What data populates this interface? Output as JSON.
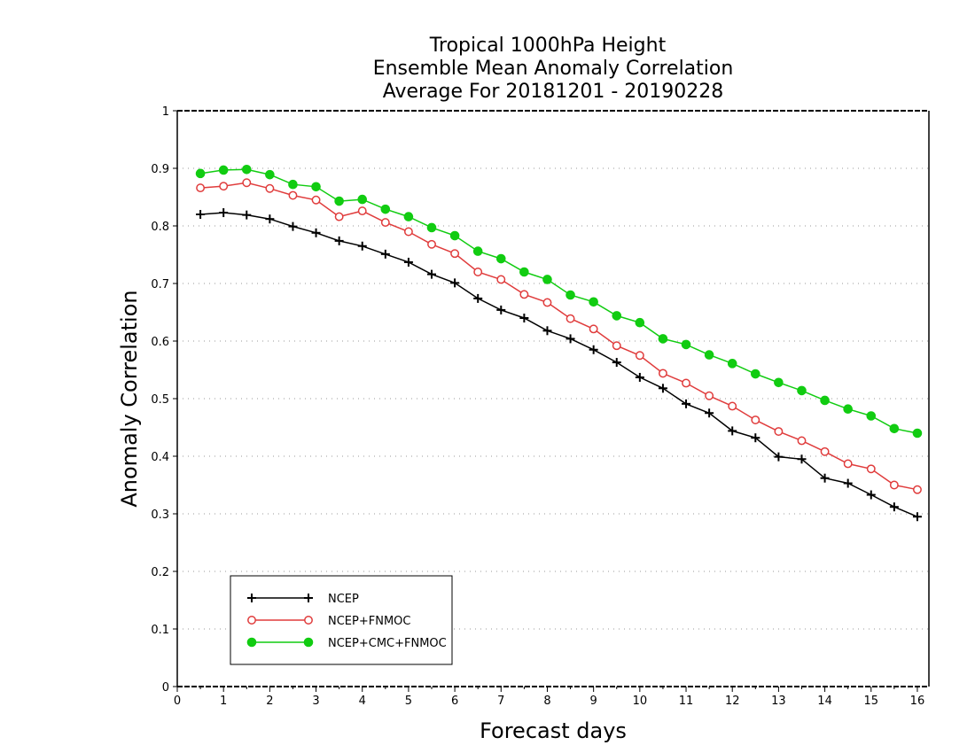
{
  "chart_data": {
    "type": "line",
    "title": [
      "Tropical 1000hPa Height",
      "Ensemble Mean Anomaly Correlation",
      "Average For 20181201 - 20190228"
    ],
    "xlabel": "Forecast days",
    "ylabel": "Anomaly Correlation",
    "xlim": [
      0,
      16.25
    ],
    "ylim": [
      0,
      1
    ],
    "xticks": [
      0,
      1,
      2,
      3,
      4,
      5,
      6,
      7,
      8,
      9,
      10,
      11,
      12,
      13,
      14,
      15,
      16
    ],
    "yticks": [
      0,
      0.1,
      0.2,
      0.3,
      0.4,
      0.5,
      0.6,
      0.7,
      0.8,
      0.9,
      1
    ],
    "ytick_labels": [
      "0",
      "0.1",
      "0.2",
      "0.3",
      "0.4",
      "0.5",
      "0.6",
      "0.7",
      "0.8",
      "0.9",
      "1"
    ],
    "grid": "horizontal-dotted",
    "legend_position": "bottom-left",
    "x": [
      0.5,
      1,
      1.5,
      2,
      2.5,
      3,
      3.5,
      4,
      4.5,
      5,
      5.5,
      6,
      6.5,
      7,
      7.5,
      8,
      8.5,
      9,
      9.5,
      10,
      10.5,
      11,
      11.5,
      12,
      12.5,
      13,
      13.5,
      14,
      14.5,
      15,
      15.5,
      16
    ],
    "series": [
      {
        "name": "NCEP",
        "color": "#000000",
        "marker": "plus",
        "values": [
          0.82,
          0.823,
          0.819,
          0.812,
          0.799,
          0.788,
          0.774,
          0.765,
          0.751,
          0.737,
          0.716,
          0.701,
          0.674,
          0.654,
          0.64,
          0.618,
          0.604,
          0.585,
          0.563,
          0.537,
          0.518,
          0.491,
          0.475,
          0.444,
          0.432,
          0.399,
          0.395,
          0.362,
          0.353,
          0.333,
          0.312,
          0.295
        ]
      },
      {
        "name": "NCEP+FNMOC",
        "color": "#e03c3c",
        "marker": "open-circle",
        "values": [
          0.866,
          0.869,
          0.875,
          0.865,
          0.853,
          0.845,
          0.816,
          0.826,
          0.806,
          0.79,
          0.768,
          0.752,
          0.72,
          0.707,
          0.681,
          0.667,
          0.639,
          0.621,
          0.592,
          0.575,
          0.544,
          0.527,
          0.505,
          0.487,
          0.463,
          0.443,
          0.427,
          0.408,
          0.387,
          0.378,
          0.35,
          0.342
        ]
      },
      {
        "name": "NCEP+CMC+FNMOC",
        "color": "#11cc11",
        "marker": "filled-circle",
        "values": [
          0.891,
          0.897,
          0.898,
          0.889,
          0.872,
          0.868,
          0.843,
          0.846,
          0.829,
          0.816,
          0.797,
          0.783,
          0.756,
          0.743,
          0.72,
          0.707,
          0.68,
          0.668,
          0.644,
          0.632,
          0.604,
          0.594,
          0.576,
          0.561,
          0.543,
          0.528,
          0.514,
          0.497,
          0.482,
          0.47,
          0.448,
          0.44
        ]
      }
    ]
  }
}
